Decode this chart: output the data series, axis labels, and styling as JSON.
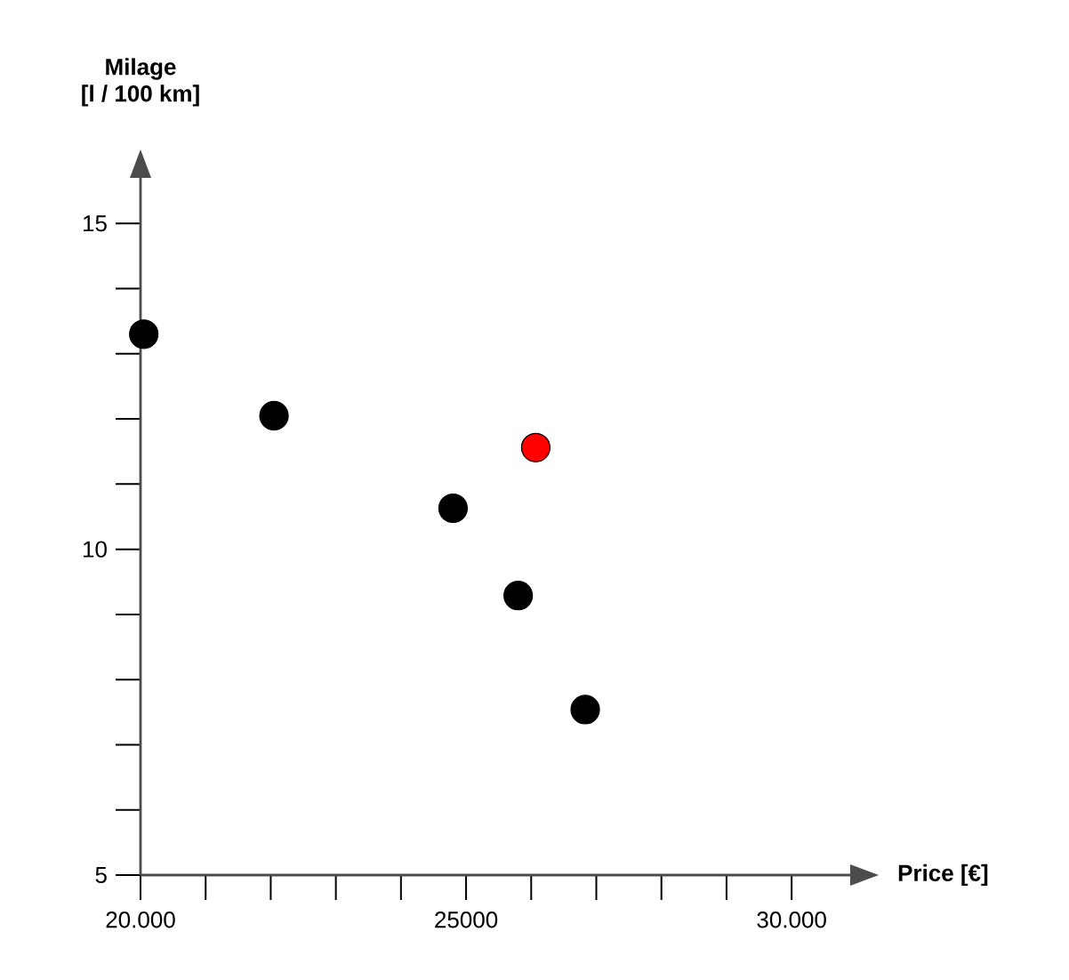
{
  "chart_data": {
    "type": "scatter",
    "xlabel": "Price [€]",
    "ylabel": "Milage [l / 100 km]",
    "x": [
      20050,
      22050,
      24800,
      26070,
      25800,
      26830
    ],
    "values": [
      13.3,
      12.05,
      10.63,
      11.56,
      9.29,
      7.54
    ],
    "colors": [
      "#000000",
      "#000000",
      "#000000",
      "#ff0000",
      "#000000",
      "#000000"
    ],
    "marker": "circle",
    "xlim": [
      20000,
      30900
    ],
    "ylim": [
      5,
      15.7
    ],
    "xticks": [
      {
        "value": 20000,
        "label": "20.000"
      },
      {
        "value": 21000,
        "label": null
      },
      {
        "value": 22000,
        "label": null
      },
      {
        "value": 23000,
        "label": null
      },
      {
        "value": 24000,
        "label": null
      },
      25000,
      {
        "value": 26000,
        "label": null
      },
      {
        "value": 27000,
        "label": null
      },
      {
        "value": 28000,
        "label": null
      },
      {
        "value": 29000,
        "label": null
      },
      {
        "value": 30000,
        "label": "30.000"
      }
    ],
    "yticks": [
      5,
      {
        "value": 6,
        "label": null
      },
      {
        "value": 7,
        "label": null
      },
      {
        "value": 8,
        "label": null
      },
      {
        "value": 9,
        "label": null
      },
      10,
      {
        "value": 11,
        "label": null
      },
      {
        "value": 12,
        "label": null
      },
      {
        "value": 13,
        "label": null
      },
      {
        "value": 14,
        "label": null
      },
      15
    ],
    "grid": false
  }
}
